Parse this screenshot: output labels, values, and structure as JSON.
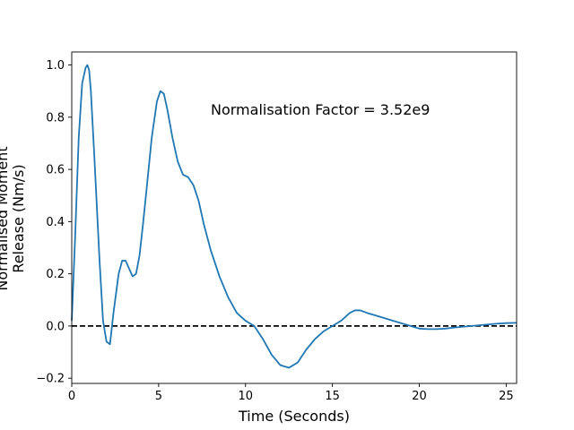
{
  "chart_data": {
    "type": "line",
    "title": "",
    "xlabel": "Time (Seconds)",
    "ylabel_lines": [
      "Normalised Moment",
      "Release (Nm/s)"
    ],
    "xlim": [
      0,
      25.6
    ],
    "ylim": [
      -0.22,
      1.05
    ],
    "xticks": [
      0,
      5,
      10,
      15,
      20,
      25
    ],
    "yticks": [
      -0.2,
      0.0,
      0.2,
      0.4,
      0.6,
      0.8,
      1.0
    ],
    "xtick_labels": [
      "0",
      "5",
      "10",
      "15",
      "20",
      "25"
    ],
    "ytick_labels": [
      "−0.2",
      "0.0",
      "0.2",
      "0.4",
      "0.6",
      "0.8",
      "1.0"
    ],
    "grid": false,
    "annotation": {
      "text": "Normalisation Factor = 3.52e9",
      "x": 8.0,
      "y": 0.81
    },
    "reference_line": {
      "y": 0.0,
      "style": "dashed",
      "color": "#000000"
    },
    "series": [
      {
        "color": "#1f77b4",
        "x": [
          0,
          0.2,
          0.4,
          0.6,
          0.8,
          0.9,
          1.0,
          1.1,
          1.3,
          1.6,
          1.8,
          2.0,
          2.2,
          2.4,
          2.7,
          2.9,
          3.1,
          3.3,
          3.5,
          3.7,
          3.9,
          4.1,
          4.3,
          4.6,
          4.9,
          5.1,
          5.3,
          5.5,
          5.8,
          6.1,
          6.4,
          6.7,
          7.0,
          7.3,
          7.6,
          8.0,
          8.5,
          9.0,
          9.5,
          10.0,
          10.5,
          11.0,
          11.5,
          12.0,
          12.5,
          13.0,
          13.5,
          14.0,
          14.5,
          15.0,
          15.5,
          16.0,
          16.3,
          16.6,
          17.0,
          17.5,
          18.0,
          18.5,
          19.0,
          19.5,
          20.0,
          20.5,
          21.0,
          21.5,
          22.0,
          22.5,
          23.0,
          23.5,
          24.0,
          24.5,
          25.0,
          25.6
        ],
        "y": [
          0.02,
          0.35,
          0.72,
          0.93,
          0.99,
          1.0,
          0.98,
          0.9,
          0.65,
          0.25,
          0.02,
          -0.06,
          -0.07,
          0.05,
          0.2,
          0.25,
          0.25,
          0.22,
          0.19,
          0.2,
          0.27,
          0.39,
          0.52,
          0.72,
          0.86,
          0.9,
          0.89,
          0.83,
          0.72,
          0.63,
          0.58,
          0.57,
          0.54,
          0.48,
          0.39,
          0.29,
          0.19,
          0.11,
          0.05,
          0.02,
          0.0,
          -0.05,
          -0.11,
          -0.15,
          -0.16,
          -0.14,
          -0.09,
          -0.05,
          -0.02,
          0.0,
          0.02,
          0.05,
          0.06,
          0.06,
          0.05,
          0.04,
          0.03,
          0.02,
          0.01,
          0.0,
          -0.01,
          -0.012,
          -0.012,
          -0.01,
          -0.006,
          -0.003,
          0.0,
          0.003,
          0.006,
          0.009,
          0.011,
          0.012
        ]
      }
    ]
  }
}
